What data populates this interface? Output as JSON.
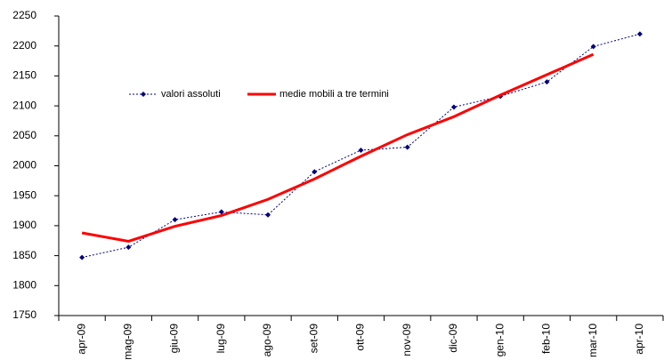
{
  "chart_data": {
    "type": "line",
    "categories": [
      "apr-09",
      "mag-09",
      "giu-09",
      "lug-09",
      "ago-09",
      "set-09",
      "ott-09",
      "nov-09",
      "dic-09",
      "gen-10",
      "feb-10",
      "mar-10",
      "apr-10"
    ],
    "series": [
      {
        "name": "valori assoluti",
        "color": "#000080",
        "values": [
          1847,
          1864,
          1910,
          1923,
          1918,
          1990,
          2026,
          2031,
          2098,
          2116,
          2140,
          2199,
          2220
        ]
      },
      {
        "name": "medie mobili a tre termini",
        "color": "#ff0000",
        "values": [
          1888,
          1874,
          1899,
          1917,
          1944,
          1978,
          2016,
          2052,
          2082,
          2118,
          2152,
          2186,
          null
        ]
      }
    ],
    "ylim": [
      1750,
      2250
    ],
    "yticks": [
      1750,
      1800,
      1850,
      1900,
      1950,
      2000,
      2050,
      2100,
      2150,
      2200,
      2250
    ],
    "grid": false
  }
}
